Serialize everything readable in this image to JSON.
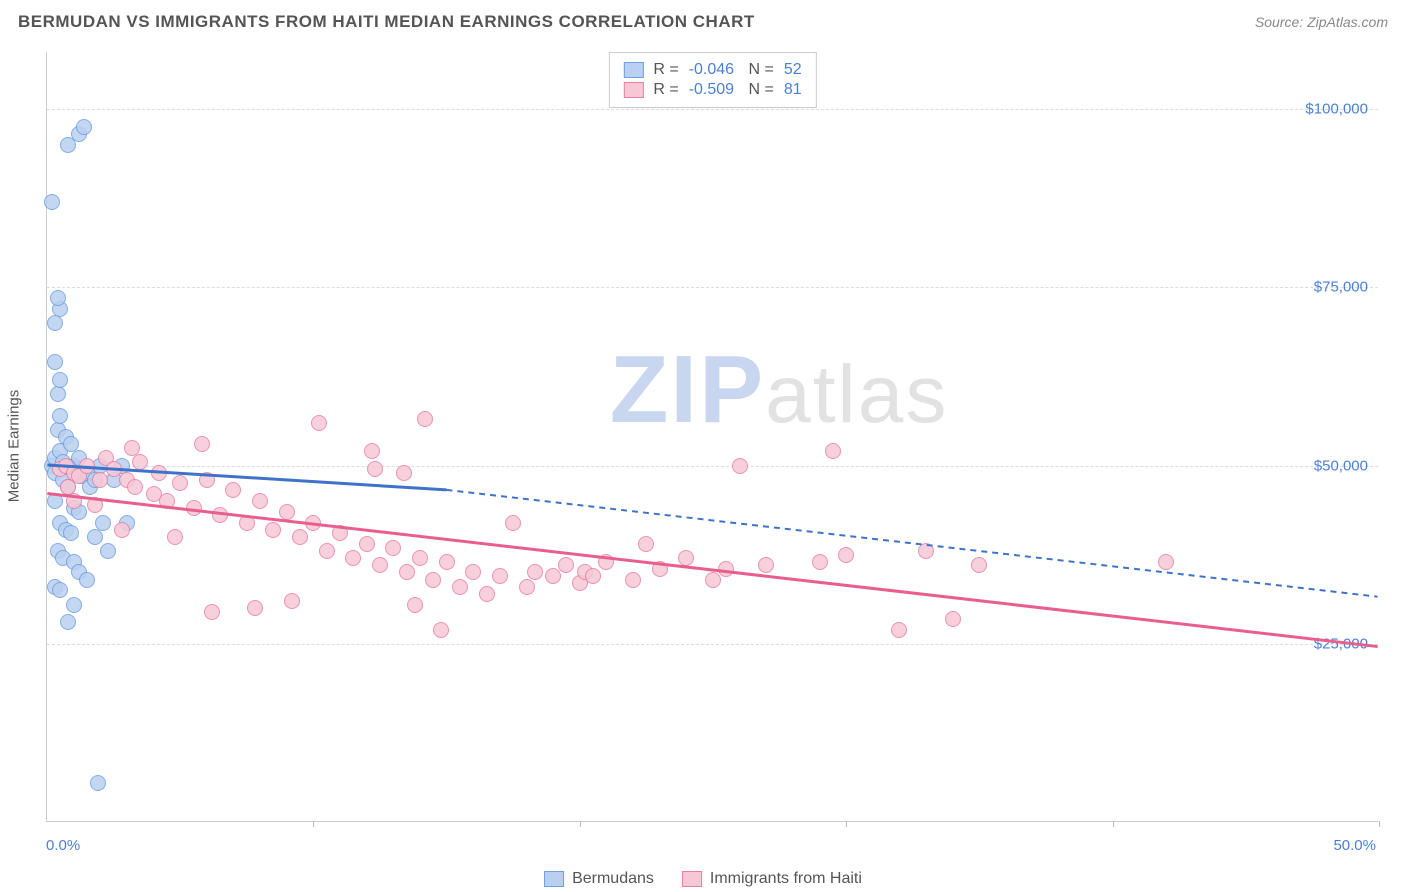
{
  "header": {
    "title": "BERMUDAN VS IMMIGRANTS FROM HAITI MEDIAN EARNINGS CORRELATION CHART",
    "source": "Source: ZipAtlas.com"
  },
  "chart": {
    "type": "scatter",
    "ylabel": "Median Earnings",
    "background_color": "#ffffff",
    "grid_color": "#dddddd",
    "axis_color": "#cccccc",
    "xlim": [
      0,
      50
    ],
    "ylim": [
      0,
      108000
    ],
    "xticks_pct": [
      0,
      10,
      20,
      30,
      40,
      50
    ],
    "xtick_labels": {
      "start": "0.0%",
      "end": "50.0%"
    },
    "yticks": [
      25000,
      50000,
      75000,
      100000
    ],
    "ytick_labels": [
      "$25,000",
      "$50,000",
      "$75,000",
      "$100,000"
    ],
    "marker_radius": 8,
    "marker_stroke_width": 1.5,
    "series": [
      {
        "name": "Bermudans",
        "fill": "#b9d0f0",
        "stroke": "#6f9fe0",
        "line_color": "#3f73c9",
        "r": "-0.046",
        "n": "52",
        "trend": {
          "x1": 0,
          "y1": 50000,
          "x2_solid": 15,
          "y2_solid": 46500,
          "x2": 50,
          "y2": 31500
        },
        "points": [
          [
            0.2,
            50000
          ],
          [
            0.3,
            49000
          ],
          [
            0.3,
            51000
          ],
          [
            0.5,
            52000
          ],
          [
            0.4,
            55000
          ],
          [
            0.6,
            48000
          ],
          [
            0.5,
            57000
          ],
          [
            0.7,
            54000
          ],
          [
            0.3,
            45000
          ],
          [
            0.8,
            47000
          ],
          [
            0.9,
            53000
          ],
          [
            1.0,
            50000
          ],
          [
            1.1,
            49500
          ],
          [
            0.4,
            60000
          ],
          [
            0.5,
            62000
          ],
          [
            0.3,
            64500
          ],
          [
            1.2,
            51000
          ],
          [
            1.3,
            48500
          ],
          [
            1.5,
            49000
          ],
          [
            1.6,
            47000
          ],
          [
            1.8,
            48000
          ],
          [
            2.0,
            50000
          ],
          [
            0.3,
            70000
          ],
          [
            0.5,
            72000
          ],
          [
            0.4,
            73500
          ],
          [
            0.2,
            87000
          ],
          [
            0.8,
            95000
          ],
          [
            1.2,
            96500
          ],
          [
            1.4,
            97500
          ],
          [
            0.5,
            42000
          ],
          [
            0.7,
            41000
          ],
          [
            0.9,
            40500
          ],
          [
            0.4,
            38000
          ],
          [
            0.6,
            37000
          ],
          [
            1.0,
            36500
          ],
          [
            1.2,
            35000
          ],
          [
            0.3,
            33000
          ],
          [
            0.5,
            32500
          ],
          [
            1.5,
            34000
          ],
          [
            1.8,
            40000
          ],
          [
            2.1,
            42000
          ],
          [
            2.3,
            38000
          ],
          [
            1.0,
            30500
          ],
          [
            0.8,
            28000
          ],
          [
            2.5,
            48000
          ],
          [
            2.8,
            50000
          ],
          [
            3.0,
            42000
          ],
          [
            1.9,
            5500
          ],
          [
            1.0,
            44000
          ],
          [
            1.2,
            43500
          ],
          [
            0.6,
            50500
          ],
          [
            0.8,
            49800
          ]
        ]
      },
      {
        "name": "Immigrants from Haiti",
        "fill": "#f6c8d6",
        "stroke": "#ea7fa3",
        "line_color": "#e85f8e",
        "r": "-0.509",
        "n": "81",
        "trend": {
          "x1": 0,
          "y1": 46000,
          "x2_solid": 50,
          "y2_solid": 24500,
          "x2": 50,
          "y2": 24500
        },
        "points": [
          [
            0.5,
            49500
          ],
          [
            0.7,
            50000
          ],
          [
            1.0,
            49000
          ],
          [
            1.2,
            48500
          ],
          [
            1.5,
            50000
          ],
          [
            2.0,
            48000
          ],
          [
            2.2,
            51000
          ],
          [
            2.5,
            49500
          ],
          [
            3.0,
            48000
          ],
          [
            3.3,
            47000
          ],
          [
            3.5,
            50500
          ],
          [
            4.0,
            46000
          ],
          [
            4.2,
            49000
          ],
          [
            4.5,
            45000
          ],
          [
            5.0,
            47500
          ],
          [
            5.5,
            44000
          ],
          [
            6.0,
            48000
          ],
          [
            6.5,
            43000
          ],
          [
            7.0,
            46500
          ],
          [
            7.5,
            42000
          ],
          [
            8.0,
            45000
          ],
          [
            8.5,
            41000
          ],
          [
            9.0,
            43500
          ],
          [
            9.5,
            40000
          ],
          [
            10.0,
            42000
          ],
          [
            10.2,
            56000
          ],
          [
            10.5,
            38000
          ],
          [
            11.0,
            40500
          ],
          [
            11.5,
            37000
          ],
          [
            12.0,
            39000
          ],
          [
            12.2,
            52000
          ],
          [
            12.3,
            49500
          ],
          [
            12.5,
            36000
          ],
          [
            13.0,
            38500
          ],
          [
            13.4,
            49000
          ],
          [
            13.5,
            35000
          ],
          [
            14.0,
            37000
          ],
          [
            14.2,
            56500
          ],
          [
            14.5,
            34000
          ],
          [
            15.0,
            36500
          ],
          [
            15.5,
            33000
          ],
          [
            16.0,
            35000
          ],
          [
            16.5,
            32000
          ],
          [
            17.0,
            34500
          ],
          [
            17.5,
            42000
          ],
          [
            18.0,
            33000
          ],
          [
            18.3,
            35000
          ],
          [
            19.0,
            34500
          ],
          [
            19.5,
            36000
          ],
          [
            20.0,
            33500
          ],
          [
            20.2,
            35000
          ],
          [
            20.5,
            34500
          ],
          [
            21.0,
            36500
          ],
          [
            22.0,
            34000
          ],
          [
            22.5,
            39000
          ],
          [
            23.0,
            35500
          ],
          [
            24.0,
            37000
          ],
          [
            25.0,
            34000
          ],
          [
            25.5,
            35500
          ],
          [
            26.0,
            50000
          ],
          [
            27.0,
            36000
          ],
          [
            29.0,
            36500
          ],
          [
            29.5,
            52000
          ],
          [
            30.0,
            37500
          ],
          [
            32.0,
            27000
          ],
          [
            33.0,
            38000
          ],
          [
            34.0,
            28500
          ],
          [
            35.0,
            36000
          ],
          [
            13.8,
            30500
          ],
          [
            14.8,
            27000
          ],
          [
            9.2,
            31000
          ],
          [
            7.8,
            30000
          ],
          [
            6.2,
            29500
          ],
          [
            5.8,
            53000
          ],
          [
            2.8,
            41000
          ],
          [
            3.2,
            52500
          ],
          [
            1.8,
            44500
          ],
          [
            4.8,
            40000
          ],
          [
            42.0,
            36500
          ],
          [
            1.0,
            45000
          ],
          [
            0.8,
            47000
          ]
        ]
      }
    ],
    "legend_bottom": [
      {
        "label": "Bermudans",
        "fill": "#b9d0f0",
        "stroke": "#6f9fe0"
      },
      {
        "label": "Immigrants from Haiti",
        "fill": "#f6c8d6",
        "stroke": "#ea7fa3"
      }
    ],
    "watermark": {
      "bold": "ZIP",
      "rest": "atlas"
    }
  }
}
